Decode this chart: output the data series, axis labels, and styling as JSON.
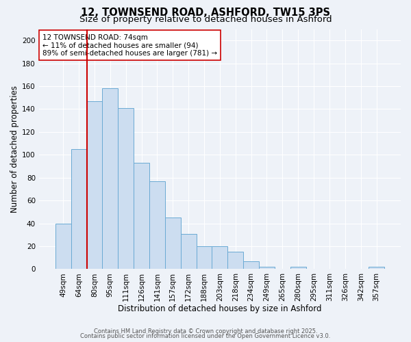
{
  "title": "12, TOWNSEND ROAD, ASHFORD, TW15 3PS",
  "subtitle": "Size of property relative to detached houses in Ashford",
  "xlabel": "Distribution of detached houses by size in Ashford",
  "ylabel": "Number of detached properties",
  "bar_labels": [
    "49sqm",
    "64sqm",
    "80sqm",
    "95sqm",
    "111sqm",
    "126sqm",
    "141sqm",
    "157sqm",
    "172sqm",
    "188sqm",
    "203sqm",
    "218sqm",
    "234sqm",
    "249sqm",
    "265sqm",
    "280sqm",
    "295sqm",
    "311sqm",
    "326sqm",
    "342sqm",
    "357sqm"
  ],
  "bar_values": [
    40,
    105,
    147,
    158,
    141,
    93,
    77,
    45,
    31,
    20,
    20,
    15,
    7,
    2,
    0,
    2,
    0,
    0,
    0,
    0,
    2
  ],
  "bar_color": "#ccddf0",
  "bar_edge_color": "#6aaad4",
  "vline_color": "#cc0000",
  "vline_pos": 1.5,
  "annotation_title": "12 TOWNSEND ROAD: 74sqm",
  "annotation_line1": "← 11% of detached houses are smaller (94)",
  "annotation_line2": "89% of semi-detached houses are larger (781) →",
  "annotation_box_color": "#ffffff",
  "annotation_box_edge": "#cc0000",
  "ylim": [
    0,
    210
  ],
  "yticks": [
    0,
    20,
    40,
    60,
    80,
    100,
    120,
    140,
    160,
    180,
    200
  ],
  "footer1": "Contains HM Land Registry data © Crown copyright and database right 2025.",
  "footer2": "Contains public sector information licensed under the Open Government Licence v3.0.",
  "background_color": "#eef2f8",
  "grid_color": "#ffffff",
  "title_fontsize": 10.5,
  "subtitle_fontsize": 9.5,
  "xlabel_fontsize": 8.5,
  "ylabel_fontsize": 8.5,
  "tick_fontsize": 7.5,
  "footer_fontsize": 6.0,
  "ann_fontsize": 7.5
}
